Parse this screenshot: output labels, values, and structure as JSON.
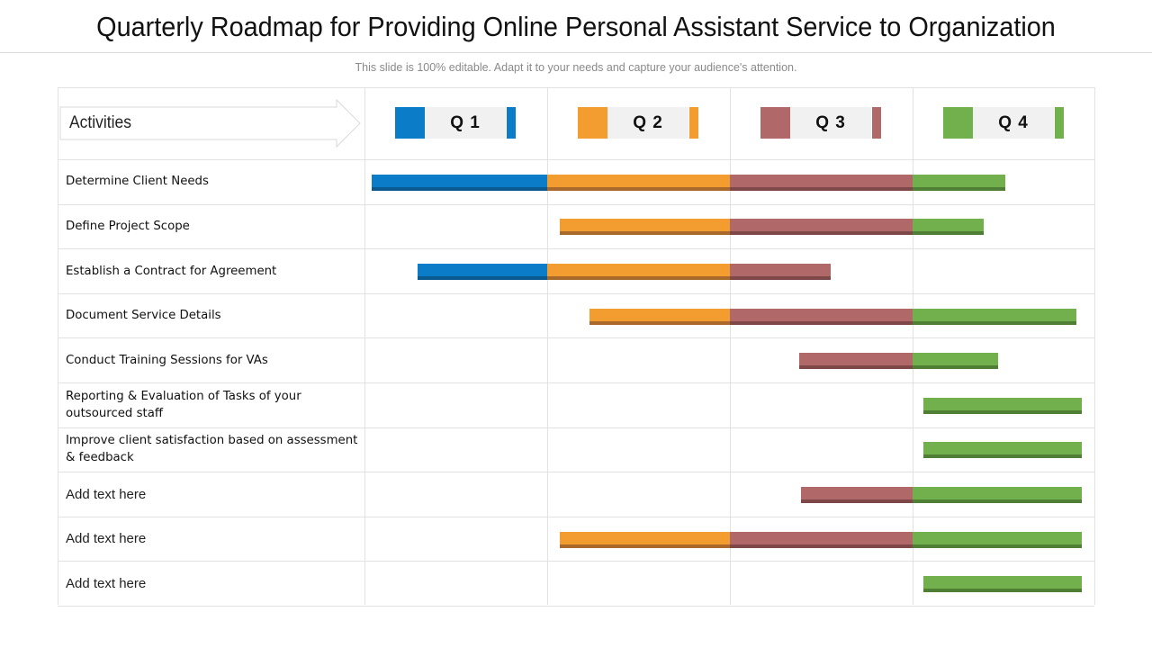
{
  "title": "Quarterly Roadmap for Providing Online Personal Assistant Service to Organization",
  "subtitle": "This slide is 100% editable. Adapt it to your needs and capture your audience's attention.",
  "chart_data": {
    "type": "gantt",
    "header_label": "Activities",
    "quarters": [
      {
        "name": "Q 1",
        "color": "#0b7dc8",
        "shade": "#0a5a8f"
      },
      {
        "name": "Q 2",
        "color": "#f39c2f",
        "shade": "#a9692b"
      },
      {
        "name": "Q 3",
        "color": "#b06868",
        "shade": "#7e4848"
      },
      {
        "name": "Q 4",
        "color": "#72b04d",
        "shade": "#4f7f35"
      }
    ],
    "axis_range": [
      0,
      4
    ],
    "rows": [
      {
        "label": "Determine  Client Needs",
        "start": 0.04,
        "end": 3.51
      },
      {
        "label": "Define Project Scope",
        "start": 1.07,
        "end": 3.39
      },
      {
        "label": "Establish a Contract for Agreement",
        "start": 0.29,
        "end": 2.55
      },
      {
        "label": "Document  Service Details",
        "start": 1.23,
        "end": 3.9
      },
      {
        "label": "Conduct  Training Sessions for VAs",
        "start": 2.38,
        "end": 3.47
      },
      {
        "label": "Reporting & Evaluation of Tasks of your outsourced staff",
        "start": 3.06,
        "end": 3.93
      },
      {
        "label": "Improve  client satisfaction based on assessment & feedback",
        "start": 3.06,
        "end": 3.93
      },
      {
        "label": "Add text here",
        "start": 2.39,
        "end": 3.93
      },
      {
        "label": "Add text here",
        "start": 1.07,
        "end": 3.93
      },
      {
        "label": "Add text here",
        "start": 3.06,
        "end": 3.93
      }
    ]
  }
}
